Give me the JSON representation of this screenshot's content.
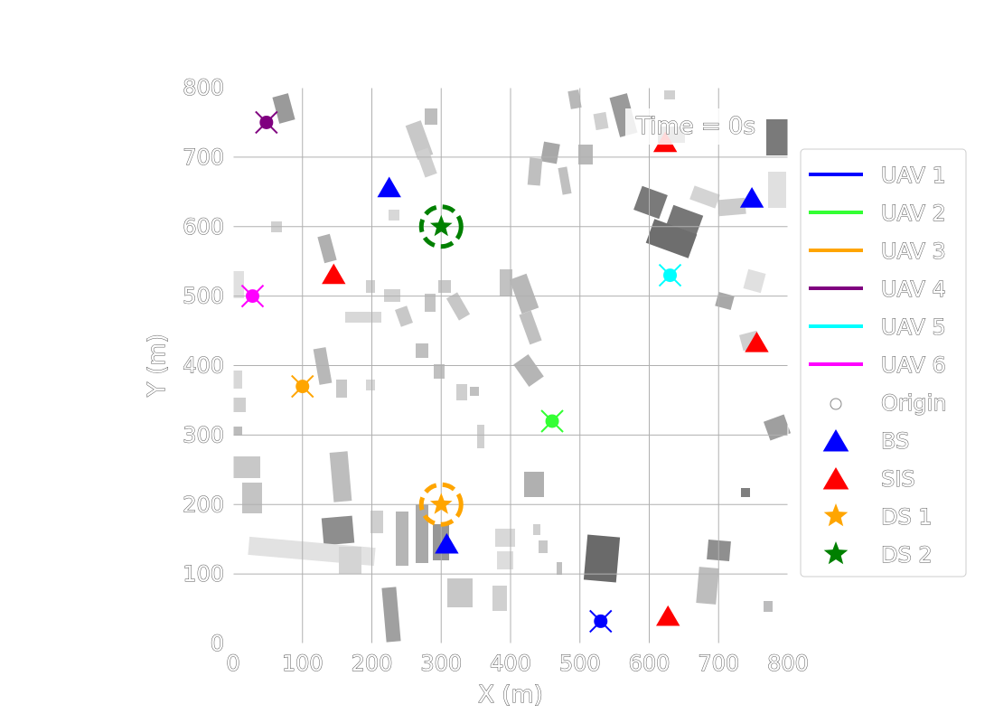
{
  "chart_data": {
    "type": "scatter",
    "xlabel": "X (m)",
    "ylabel": "Y (m)",
    "xlim": [
      0,
      800
    ],
    "ylim": [
      0,
      800
    ],
    "xticks": [
      0,
      100,
      200,
      300,
      400,
      500,
      600,
      700,
      800
    ],
    "yticks": [
      0,
      100,
      200,
      300,
      400,
      500,
      600,
      700,
      800
    ],
    "grid": true,
    "background": "building footprint map (grey rectangles)",
    "annotation": "Time = 0s",
    "legend_position": "right",
    "legend": [
      {
        "label": "UAV 1",
        "kind": "line",
        "color": "#0000ff"
      },
      {
        "label": "UAV 2",
        "kind": "line",
        "color": "#33ff33"
      },
      {
        "label": "UAV 3",
        "kind": "line",
        "color": "#ffa500"
      },
      {
        "label": "UAV 4",
        "kind": "line",
        "color": "#800080"
      },
      {
        "label": "UAV 5",
        "kind": "line",
        "color": "#00ffff"
      },
      {
        "label": "UAV 6",
        "kind": "line",
        "color": "#ff00ff"
      },
      {
        "label": "Origin",
        "kind": "circle",
        "color": "#ffffff"
      },
      {
        "label": "BS",
        "kind": "triangle",
        "color": "#0000ff"
      },
      {
        "label": "SIS",
        "kind": "triangle",
        "color": "#ff0000"
      },
      {
        "label": "DS 1",
        "kind": "star",
        "color": "#ffa500"
      },
      {
        "label": "DS 2",
        "kind": "star",
        "color": "#008000"
      }
    ],
    "uav_origins": [
      {
        "name": "UAV 1",
        "x": 530,
        "y": 32,
        "color": "#0000ff"
      },
      {
        "name": "UAV 2",
        "x": 460,
        "y": 320,
        "color": "#33ff33"
      },
      {
        "name": "UAV 3",
        "x": 100,
        "y": 370,
        "color": "#ffa500"
      },
      {
        "name": "UAV 4",
        "x": 48,
        "y": 750,
        "color": "#800080"
      },
      {
        "name": "UAV 5",
        "x": 630,
        "y": 530,
        "color": "#00ffff"
      },
      {
        "name": "UAV 6",
        "x": 28,
        "y": 500,
        "color": "#ff00ff"
      }
    ],
    "base_stations": [
      {
        "x": 225,
        "y": 655
      },
      {
        "x": 748,
        "y": 640
      },
      {
        "x": 308,
        "y": 142
      }
    ],
    "sis": [
      {
        "x": 623,
        "y": 720
      },
      {
        "x": 145,
        "y": 530
      },
      {
        "x": 755,
        "y": 432
      },
      {
        "x": 627,
        "y": 38
      }
    ],
    "destinations": [
      {
        "name": "DS 1",
        "x": 300,
        "y": 200,
        "color": "#ffa500"
      },
      {
        "name": "DS 2",
        "x": 300,
        "y": 600,
        "color": "#008000"
      }
    ]
  }
}
